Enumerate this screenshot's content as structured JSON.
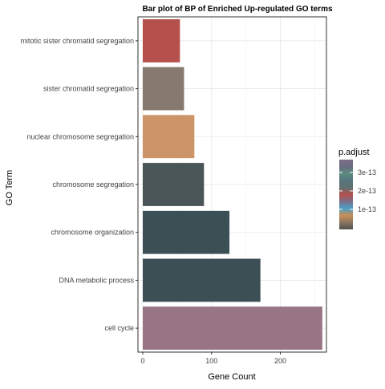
{
  "chart_data": {
    "type": "bar",
    "orientation": "horizontal",
    "title": "Bar plot of BP of Enriched Up-regulated GO terms",
    "xlabel": "Gene Count",
    "ylabel": "GO Term",
    "xlim": [
      -7,
      267
    ],
    "x_ticks": [
      0,
      100,
      200
    ],
    "categories": [
      "mitotic sister chromatid segregation",
      "sister chromatid segregation",
      "nuclear chromosome segregation",
      "chromosome segregation",
      "chromosome organization",
      "DNA metabolic process",
      "cell cycle"
    ],
    "values": [
      54,
      60,
      75,
      89,
      126,
      171,
      261
    ],
    "bar_colors": [
      "#b5504d",
      "#857a6d",
      "#cd9467",
      "#4a5558",
      "#3a5055",
      "#3b4f54",
      "#987585"
    ],
    "grid": true,
    "legend": {
      "title": "p.adjust",
      "position": "right",
      "labels": [
        "3e-13",
        "2e-13",
        "1e-13"
      ],
      "gradient_colors_top_to_bottom": [
        "#7a6f8a",
        "#6a6c80",
        "#5b8a80",
        "#57747f",
        "#5e7272",
        "#b5504d",
        "#7a6f8a",
        "#4aa0c8",
        "#c98f57",
        "#8a7560",
        "#505050"
      ]
    }
  }
}
